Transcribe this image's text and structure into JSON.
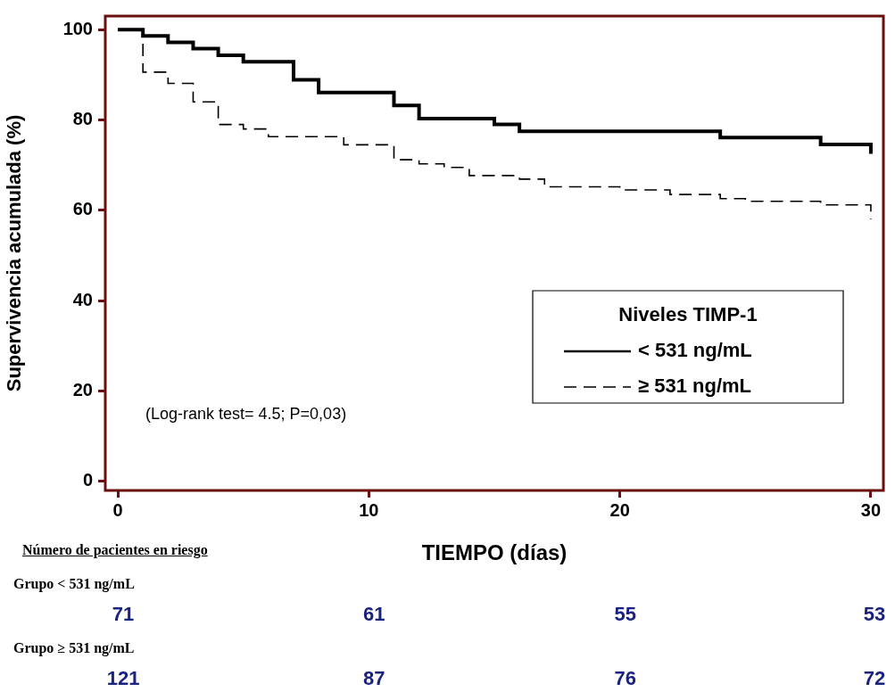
{
  "chart_data": {
    "type": "step",
    "xlabel": "TIEMPO (días)",
    "ylabel": "Supervivencia acumulada (%)",
    "legend_title": "Niveles TIMP-1",
    "xlim": [
      -0.5,
      30.5
    ],
    "xticks": [
      0,
      10,
      20,
      30
    ],
    "ylim": [
      -2,
      103
    ],
    "yticks": [
      0,
      20,
      40,
      60,
      80,
      100
    ],
    "legend": "right",
    "marker": "none",
    "series": [
      {
        "name": "< 531 ng/mL",
        "color": "#000000",
        "line_style": "solid",
        "x": [
          0,
          1,
          2,
          3,
          4,
          5,
          7,
          8,
          11,
          12,
          15,
          16,
          24,
          28,
          30
        ],
        "values": [
          100,
          98.6,
          97.2,
          95.8,
          94.3,
          92.9,
          88.9,
          86.1,
          83.2,
          80.3,
          79.0,
          77.5,
          76.1,
          74.6,
          72.5
        ]
      },
      {
        "name": "≥ 531 ng/mL",
        "color": "#000000",
        "line_style": "dashed",
        "x": [
          0,
          1,
          2,
          3,
          4,
          5,
          6,
          9,
          11,
          12,
          13,
          14,
          16,
          17,
          20,
          22,
          24,
          25,
          28,
          30
        ],
        "values": [
          100,
          90.6,
          88.1,
          84.0,
          79.0,
          78.0,
          76.3,
          74.5,
          71.2,
          70.3,
          69.5,
          67.7,
          66.9,
          65.2,
          64.5,
          63.5,
          62.6,
          62.0,
          61.2,
          58.0
        ]
      }
    ],
    "annotations": [
      "(Log-rank test= 4.5; P=0,03)",
      "Número de pacientes en riesgo",
      "Grupo < 531 ng/mL",
      "71",
      "61",
      "55",
      "53",
      "Grupo ≥ 531 ng/mL",
      "121",
      "87",
      "76",
      "72"
    ]
  }
}
